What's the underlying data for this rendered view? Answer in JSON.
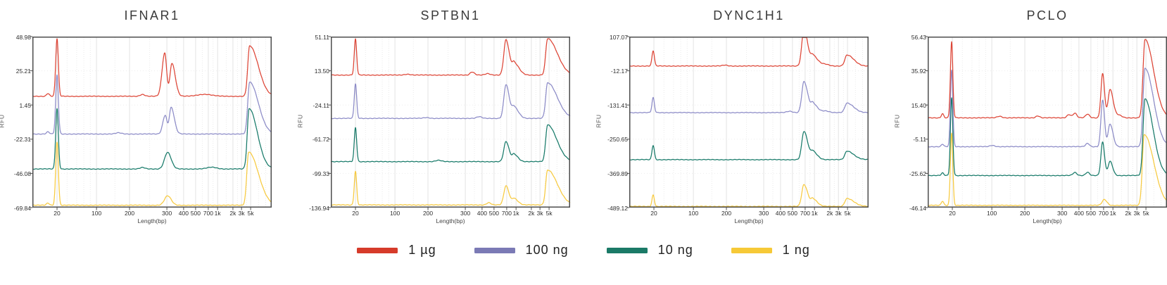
{
  "page": {
    "background": "#ffffff"
  },
  "axis": {
    "ylabel": "RFU",
    "xlabel": "Length(bp)",
    "xticks": [
      {
        "label": "20",
        "f": 0.103
      },
      {
        "label": "100",
        "f": 0.268
      },
      {
        "label": "200",
        "f": 0.406
      },
      {
        "label": "300",
        "f": 0.562
      },
      {
        "label": "400",
        "f": 0.632
      },
      {
        "label": "500",
        "f": 0.682
      },
      {
        "label": "700",
        "f": 0.735
      },
      {
        "label": "1k",
        "f": 0.774
      },
      {
        "label": "2k",
        "f": 0.838
      },
      {
        "label": "3k",
        "f": 0.874
      },
      {
        "label": "5k",
        "f": 0.912
      }
    ],
    "minor_gridlines": [
      0.145,
      0.185,
      0.215,
      0.242,
      0.345,
      0.49,
      0.6,
      0.71,
      0.755,
      0.81,
      0.857,
      0.895,
      0.945,
      0.975
    ]
  },
  "legend": {
    "items": [
      {
        "label": "1 µg",
        "color": "#d63b2a"
      },
      {
        "label": "100 ng",
        "color": "#7b7ab5"
      },
      {
        "label": "10 ng",
        "color": "#1b7a67"
      },
      {
        "label": "1 ng",
        "color": "#f6c937"
      }
    ]
  },
  "chart_data": [
    {
      "type": "line",
      "title": "IFNAR1",
      "xlabel": "Length(bp)",
      "ylabel": "RFU",
      "ylim": [
        -69.84,
        48.98
      ],
      "yticks": [
        "48.98",
        "25.21",
        "1.45",
        "-22.31",
        "-46.08",
        "-69.84"
      ],
      "series": [
        {
          "name": "1 µg",
          "color": "#dd4435",
          "baseline": 7.5,
          "peaks": [
            [
              0.103,
              40,
              0.0055,
              0.0055
            ],
            [
              0.553,
              30,
              0.011,
              0.008
            ],
            [
              0.583,
              23,
              0.008,
              0.014
            ],
            [
              0.908,
              35,
              0.008,
              0.036
            ],
            [
              0.46,
              1.3,
              0.01,
              0.01
            ],
            [
              0.72,
              1.4,
              0.03,
              0.03
            ],
            [
              0.065,
              2,
              0.006,
              0.006
            ]
          ]
        },
        {
          "name": "100 ng",
          "color": "#8c8bc7",
          "baseline": -18.7,
          "peaks": [
            [
              0.103,
              41,
              0.0055,
              0.0055
            ],
            [
              0.555,
              13,
              0.01,
              0.007
            ],
            [
              0.58,
              18.5,
              0.008,
              0.013
            ],
            [
              0.908,
              36,
              0.008,
              0.036
            ],
            [
              0.065,
              1.5,
              0.006,
              0.006
            ],
            [
              0.36,
              0.8,
              0.012,
              0.012
            ]
          ]
        },
        {
          "name": "10 ng",
          "color": "#177a69",
          "baseline": -43.0,
          "peaks": [
            [
              0.103,
              42,
              0.0055,
              0.0055
            ],
            [
              0.565,
              11.5,
              0.013,
              0.015
            ],
            [
              0.906,
              42,
              0.008,
              0.034
            ],
            [
              0.46,
              1,
              0.01,
              0.01
            ],
            [
              0.75,
              1.2,
              0.02,
              0.02
            ]
          ]
        },
        {
          "name": "1 ng",
          "color": "#f7ca40",
          "baseline": -68.2,
          "peaks": [
            [
              0.103,
              44,
              0.0055,
              0.0055
            ],
            [
              0.565,
              6.5,
              0.013,
              0.015
            ],
            [
              0.904,
              37,
              0.008,
              0.04
            ],
            [
              0.065,
              1.5,
              0.006,
              0.006
            ]
          ]
        }
      ]
    },
    {
      "type": "line",
      "title": "SPTBN1",
      "xlabel": "Length(bp)",
      "ylabel": "RFU",
      "ylim": [
        -136.94,
        51.11
      ],
      "yticks": [
        "51.11",
        "13.50",
        "-24.11",
        "-61.72",
        "-99.33",
        "-136.94"
      ],
      "series": [
        {
          "name": "1 µg",
          "color": "#dd4435",
          "baseline": 8.8,
          "peaks": [
            [
              0.103,
              39.5,
              0.005,
              0.005
            ],
            [
              0.59,
              3.5,
              0.008,
              0.01
            ],
            [
              0.732,
              39,
              0.009,
              0.014
            ],
            [
              0.766,
              13,
              0.008,
              0.02
            ],
            [
              0.906,
              40,
              0.008,
              0.04
            ],
            [
              0.655,
              1.5,
              0.01,
              0.01
            ],
            [
              0.32,
              1,
              0.012,
              0.012
            ]
          ]
        },
        {
          "name": "100 ng",
          "color": "#8c8bc7",
          "baseline": -38.8,
          "peaks": [
            [
              0.103,
              38,
              0.005,
              0.005
            ],
            [
              0.732,
              37,
              0.009,
              0.014
            ],
            [
              0.766,
              12,
              0.008,
              0.018
            ],
            [
              0.906,
              39,
              0.008,
              0.04
            ],
            [
              0.62,
              1.8,
              0.01,
              0.01
            ],
            [
              0.4,
              0.9,
              0.012,
              0.012
            ]
          ]
        },
        {
          "name": "10 ng",
          "color": "#177a69",
          "baseline": -86.4,
          "peaks": [
            [
              0.103,
              37.5,
              0.005,
              0.005
            ],
            [
              0.732,
              22,
              0.009,
              0.013
            ],
            [
              0.766,
              8,
              0.008,
              0.016
            ],
            [
              0.906,
              40.5,
              0.008,
              0.038
            ],
            [
              0.45,
              1.4,
              0.012,
              0.012
            ]
          ]
        },
        {
          "name": "1 ng",
          "color": "#f7ca40",
          "baseline": -134.0,
          "peaks": [
            [
              0.103,
              37,
              0.005,
              0.005
            ],
            [
              0.732,
              21,
              0.009,
              0.013
            ],
            [
              0.766,
              7,
              0.008,
              0.016
            ],
            [
              0.906,
              38.5,
              0.008,
              0.04
            ],
            [
              0.66,
              2.5,
              0.009,
              0.009
            ]
          ]
        }
      ]
    },
    {
      "type": "line",
      "title": "DYNC1H1",
      "xlabel": "Length(bp)",
      "ylabel": "RFU",
      "ylim": [
        -489.12,
        107.07
      ],
      "yticks": [
        "107.07",
        "-12.17",
        "-131.41",
        "-250.65",
        "-369.89",
        "-489.12"
      ],
      "series": [
        {
          "name": "1 µg",
          "color": "#dd4435",
          "baseline": 4.5,
          "peaks": [
            [
              0.1,
              53,
              0.005,
              0.005
            ],
            [
              0.73,
              128,
              0.009,
              0.016
            ],
            [
              0.768,
              34,
              0.008,
              0.02
            ],
            [
              0.91,
              38,
              0.009,
              0.028
            ],
            [
              0.82,
              6,
              0.015,
              0.015
            ],
            [
              0.4,
              3,
              0.01,
              0.01
            ]
          ]
        },
        {
          "name": "100 ng",
          "color": "#8c8bc7",
          "baseline": -158,
          "peaks": [
            [
              0.1,
              52,
              0.005,
              0.005
            ],
            [
              0.73,
              108,
              0.009,
              0.016
            ],
            [
              0.768,
              30,
              0.008,
              0.018
            ],
            [
              0.91,
              33,
              0.009,
              0.028
            ],
            [
              0.82,
              6,
              0.015,
              0.015
            ],
            [
              0.67,
              5,
              0.012,
              0.012
            ]
          ]
        },
        {
          "name": "10 ng",
          "color": "#177a69",
          "baseline": -322,
          "peaks": [
            [
              0.1,
              50,
              0.005,
              0.005
            ],
            [
              0.73,
              98,
              0.009,
              0.016
            ],
            [
              0.768,
              27,
              0.008,
              0.018
            ],
            [
              0.91,
              30,
              0.009,
              0.028
            ]
          ]
        },
        {
          "name": "1 ng",
          "color": "#f7ca40",
          "baseline": -485,
          "peaks": [
            [
              0.1,
              40,
              0.005,
              0.005
            ],
            [
              0.73,
              76,
              0.009,
              0.016
            ],
            [
              0.768,
              25,
              0.008,
              0.018
            ],
            [
              0.91,
              28,
              0.009,
              0.028
            ]
          ]
        }
      ]
    },
    {
      "type": "line",
      "title": "PCLO",
      "xlabel": "Length(bp)",
      "ylabel": "RFU",
      "ylim": [
        -46.14,
        56.43
      ],
      "yticks": [
        "56.43",
        "35.92",
        "15.40",
        "-5.11",
        "-25.62",
        "-46.14"
      ],
      "series": [
        {
          "name": "1 µg",
          "color": "#dd4435",
          "baseline": 7.7,
          "peaks": [
            [
              0.1,
              45.5,
              0.005,
              0.005
            ],
            [
              0.731,
              26.5,
              0.007,
              0.008
            ],
            [
              0.762,
              17,
              0.008,
              0.013
            ],
            [
              0.908,
              47,
              0.008,
              0.036
            ],
            [
              0.615,
              2.8,
              0.008,
              0.008
            ],
            [
              0.59,
              2,
              0.008,
              0.008
            ],
            [
              0.668,
              2.2,
              0.008,
              0.008
            ],
            [
              0.46,
              1.2,
              0.008,
              0.008
            ],
            [
              0.3,
              1,
              0.01,
              0.01
            ],
            [
              0.062,
              2.5,
              0.005,
              0.005
            ],
            [
              0.8,
              1.5,
              0.012,
              0.012
            ]
          ]
        },
        {
          "name": "100 ng",
          "color": "#8c8bc7",
          "baseline": -9.6,
          "peaks": [
            [
              0.1,
              46,
              0.005,
              0.005
            ],
            [
              0.731,
              28,
              0.007,
              0.008
            ],
            [
              0.762,
              13.5,
              0.008,
              0.012
            ],
            [
              0.908,
              47,
              0.008,
              0.036
            ],
            [
              0.668,
              2,
              0.008,
              0.008
            ],
            [
              0.062,
              1.5,
              0.005,
              0.005
            ],
            [
              0.27,
              0.8,
              0.01,
              0.01
            ]
          ]
        },
        {
          "name": "10 ng",
          "color": "#177a69",
          "baseline": -26.9,
          "peaks": [
            [
              0.1,
              46.5,
              0.005,
              0.005
            ],
            [
              0.731,
              20,
              0.007,
              0.008
            ],
            [
              0.762,
              8.5,
              0.008,
              0.011
            ],
            [
              0.908,
              46,
              0.008,
              0.034
            ],
            [
              0.668,
              2,
              0.008,
              0.008
            ],
            [
              0.615,
              1.8,
              0.008,
              0.008
            ],
            [
              0.062,
              1.5,
              0.005,
              0.005
            ]
          ]
        },
        {
          "name": "1 ng",
          "color": "#f7ca40",
          "baseline": -44.8,
          "peaks": [
            [
              0.1,
              43.5,
              0.005,
              0.005
            ],
            [
              0.738,
              3.5,
              0.009,
              0.011
            ],
            [
              0.905,
              42.5,
              0.008,
              0.04
            ],
            [
              0.062,
              2.5,
              0.005,
              0.005
            ]
          ]
        }
      ]
    }
  ]
}
